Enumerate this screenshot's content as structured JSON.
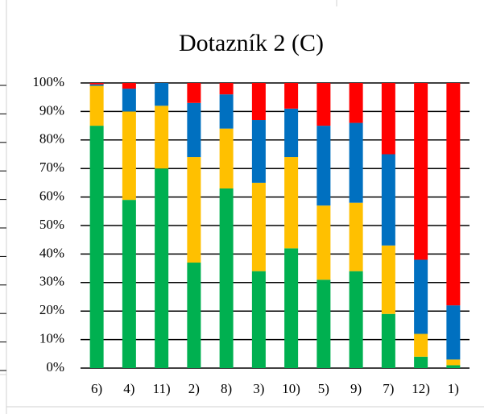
{
  "chart_data": {
    "type": "stacked_bar",
    "title": "Dotazník 2 (C)",
    "categories": [
      "6)",
      "4)",
      "11)",
      "2)",
      "8)",
      "3)",
      "10)",
      "5)",
      "9)",
      "7)",
      "12)",
      "1)"
    ],
    "series": [
      {
        "color": "#00b050",
        "values": [
          85,
          59,
          70,
          37,
          63,
          34,
          42,
          31,
          34,
          19,
          4,
          1
        ]
      },
      {
        "color": "#ffc000",
        "values": [
          14,
          31,
          22,
          37,
          21,
          31,
          32,
          26,
          24,
          24,
          8,
          2
        ]
      },
      {
        "color": "#0070c0",
        "values": [
          0.5,
          8,
          8,
          19,
          12,
          22,
          17,
          28,
          28,
          32,
          26,
          19
        ]
      },
      {
        "color": "#ff0000",
        "values": [
          0.5,
          2,
          0,
          7,
          4,
          13,
          9,
          15,
          14,
          25,
          62,
          78
        ]
      }
    ],
    "ylim": [
      0,
      100
    ],
    "yticks": [
      {
        "value": 0,
        "label": "0%"
      },
      {
        "value": 10,
        "label": "10%"
      },
      {
        "value": 20,
        "label": "20%"
      },
      {
        "value": 30,
        "label": "30%"
      },
      {
        "value": 40,
        "label": "40%"
      },
      {
        "value": 50,
        "label": "50%"
      },
      {
        "value": 60,
        "label": "60%"
      },
      {
        "value": 70,
        "label": "70%"
      },
      {
        "value": 80,
        "label": "80%"
      },
      {
        "value": 90,
        "label": "90%"
      },
      {
        "value": 100,
        "label": "100%"
      }
    ],
    "grid": true
  }
}
